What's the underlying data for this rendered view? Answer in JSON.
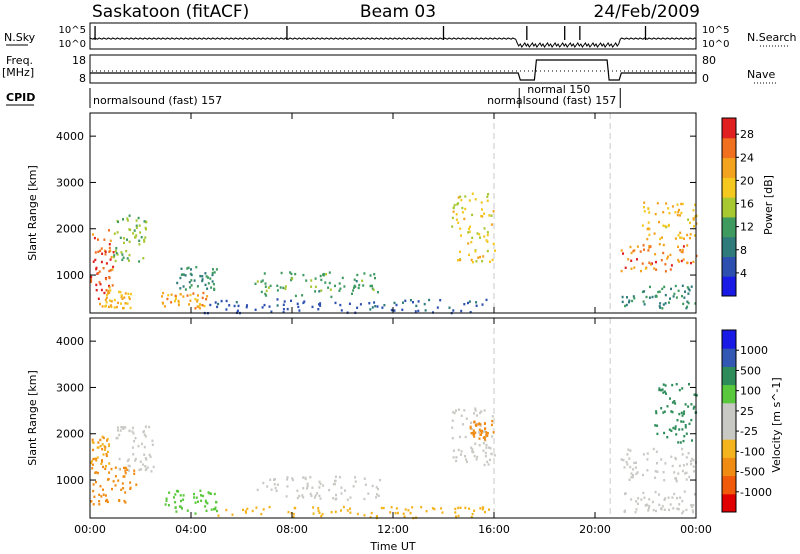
{
  "header": {
    "station": "Saskatoon (fitACF)",
    "beam": "Beam 03",
    "date": "24/Feb/2009"
  },
  "strip_labels": {
    "nsky": "N.Sky",
    "nsky_ticks": [
      "10^5",
      "10^0"
    ],
    "nsearch": "N.Search",
    "nsearch_ticks": [
      "10^5",
      "10^0"
    ],
    "freq": "Freq.",
    "freq_unit": "[MHz]",
    "freq_ticks": [
      "18",
      "8"
    ],
    "nave": "Nave",
    "nave_ticks": [
      "80",
      "0"
    ],
    "cpid": "CPID"
  },
  "cpid_segments": [
    {
      "label": "normalsound (fast) 157",
      "start_h": 0.0,
      "end_h": 17.0
    },
    {
      "label": "normal 150",
      "start_h": 17.0,
      "end_h": 21.0
    },
    {
      "label": "normalsound (fast) 157",
      "start_h": 21.0,
      "end_h": 24.0
    }
  ],
  "colors": {
    "power": [
      "#1a1ae6",
      "#2c4fb0",
      "#2f7a7a",
      "#3f9a60",
      "#a8c832",
      "#f4c81e",
      "#f4a31e",
      "#f07020",
      "#e02020"
    ],
    "velocity": [
      "#e00000",
      "#f05a0a",
      "#f08c14",
      "#f4b41e",
      "#c8c8c4",
      "#c8c8c4",
      "#5ac83c",
      "#2e8c5a",
      "#3358b4",
      "#1a1ae6"
    ],
    "dashed_line": "#c8c8c8"
  },
  "chart_data": [
    {
      "type": "heatmap",
      "title": "Power",
      "ylabel": "Slant Range [km]",
      "xlabel": "",
      "x_ticks": [
        "00:00",
        "04:00",
        "08:00",
        "12:00",
        "16:00",
        "20:00",
        "00:00"
      ],
      "xlim_hours": [
        0,
        24
      ],
      "y_ticks": [
        1000,
        2000,
        3000,
        4000
      ],
      "ylim": [
        180,
        4500
      ],
      "colorbar_label": "Power [dB]",
      "colorbar_ticks": [
        4,
        8,
        12,
        16,
        20,
        24,
        28
      ],
      "colorbar_range": [
        0,
        30
      ],
      "dashed_markers_h": [
        16.0,
        20.6
      ],
      "scatter_blobs": [
        {
          "t0": 0.0,
          "t1": 0.9,
          "r0": 500,
          "r1": 2000,
          "v": 26
        },
        {
          "t0": 0.3,
          "t1": 1.6,
          "r0": 300,
          "r1": 700,
          "v": 20
        },
        {
          "t0": 0.9,
          "t1": 2.2,
          "r0": 1300,
          "r1": 2400,
          "v": 14
        },
        {
          "t0": 2.8,
          "t1": 4.6,
          "r0": 300,
          "r1": 650,
          "v": 22
        },
        {
          "t0": 3.4,
          "t1": 5.0,
          "r0": 700,
          "r1": 1200,
          "v": 10
        },
        {
          "t0": 4.5,
          "t1": 16.0,
          "r0": 200,
          "r1": 500,
          "v": 6
        },
        {
          "t0": 6.5,
          "t1": 11.5,
          "r0": 550,
          "r1": 1100,
          "v": 12
        },
        {
          "t0": 14.3,
          "t1": 16.0,
          "r0": 1300,
          "r1": 2800,
          "v": 18
        },
        {
          "t0": 21.0,
          "t1": 24.0,
          "r0": 1100,
          "r1": 1700,
          "v": 24
        },
        {
          "t0": 21.8,
          "t1": 24.0,
          "r0": 1800,
          "r1": 2600,
          "v": 20
        },
        {
          "t0": 21.0,
          "t1": 24.0,
          "r0": 300,
          "r1": 800,
          "v": 10
        }
      ]
    },
    {
      "type": "heatmap",
      "title": "Velocity",
      "ylabel": "Slant Range [km]",
      "xlabel": "Time UT",
      "x_ticks": [
        "00:00",
        "04:00",
        "08:00",
        "12:00",
        "16:00",
        "20:00",
        "00:00"
      ],
      "xlim_hours": [
        0,
        24
      ],
      "y_ticks": [
        1000,
        2000,
        3000,
        4000
      ],
      "ylim": [
        180,
        4500
      ],
      "colorbar_label": "Velocity [m s^-1]",
      "colorbar_ticks": [
        "1000",
        "500",
        "100",
        "25",
        "-25",
        "-100",
        "-500",
        "-1000"
      ],
      "dashed_markers_h": [
        16.0,
        20.6
      ],
      "scatter_blobs": [
        {
          "t0": 0.0,
          "t1": 0.8,
          "r0": 1300,
          "r1": 2000,
          "v": -100
        },
        {
          "t0": 0.0,
          "t1": 1.8,
          "r0": 500,
          "r1": 1300,
          "v": -300
        },
        {
          "t0": 1.0,
          "t1": 2.5,
          "r0": 1200,
          "r1": 2200,
          "v": 0
        },
        {
          "t0": 2.8,
          "t1": 5.0,
          "r0": 300,
          "r1": 800,
          "v": 60
        },
        {
          "t0": 5.0,
          "t1": 16.0,
          "r0": 200,
          "r1": 450,
          "v": -60
        },
        {
          "t0": 6.5,
          "t1": 11.5,
          "r0": 600,
          "r1": 1100,
          "v": 0
        },
        {
          "t0": 14.3,
          "t1": 16.0,
          "r0": 1300,
          "r1": 2600,
          "v": 0
        },
        {
          "t0": 15.0,
          "t1": 16.0,
          "r0": 1900,
          "r1": 2300,
          "v": -150
        },
        {
          "t0": 21.0,
          "t1": 24.0,
          "r0": 1000,
          "r1": 1700,
          "v": 0
        },
        {
          "t0": 22.3,
          "t1": 24.0,
          "r0": 1800,
          "r1": 3100,
          "v": 200
        },
        {
          "t0": 21.0,
          "t1": 24.0,
          "r0": 300,
          "r1": 800,
          "v": 0
        }
      ]
    }
  ]
}
